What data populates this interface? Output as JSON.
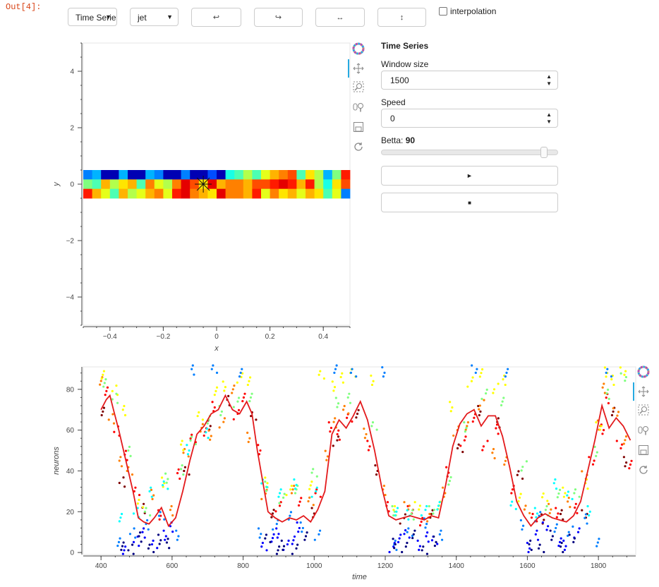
{
  "cell": {
    "prompt": "Out[4]:"
  },
  "controls": {
    "dataset_select": {
      "value": "Time Series"
    },
    "colormap_select": {
      "value": "jet"
    },
    "buttons": [
      {
        "glyph": "↩",
        "icon": "rotate-left-icon"
      },
      {
        "glyph": "↪",
        "icon": "rotate-right-icon"
      },
      {
        "glyph": "↔",
        "icon": "flip-horizontal-icon"
      },
      {
        "glyph": "↕",
        "icon": "flip-vertical-icon"
      }
    ],
    "interpolation": {
      "label": "interpolation",
      "checked": false
    }
  },
  "side_panel": {
    "title": "Time Series",
    "window_size": {
      "label": "Window size",
      "value": "1500"
    },
    "speed": {
      "label": "Speed",
      "value": "0"
    },
    "betta": {
      "label": "Betta: ",
      "value": "90",
      "fraction": 0.92
    },
    "play_glyph": "►",
    "stop_glyph": "■"
  },
  "toolbar_icons": [
    "bokeh-logo-icon",
    "pan-icon",
    "box-zoom-icon",
    "wheel-zoom-icon",
    "save-icon",
    "reset-icon"
  ],
  "colors": {
    "line": "#e31a1c",
    "jet": [
      "#00007f",
      "#0000ff",
      "#007fff",
      "#00ffff",
      "#7fff7f",
      "#ffff00",
      "#ff7f00",
      "#ff0000",
      "#7f0000"
    ]
  },
  "chart_data": [
    {
      "type": "heatmap",
      "xlabel": "x",
      "ylabel": "y",
      "xlim": [
        -0.5,
        0.5
      ],
      "ylim": [
        -5,
        5
      ],
      "xticks": [
        "−0.4",
        "−0.2",
        "0",
        "0.2",
        "0.4"
      ],
      "xtick_values": [
        -0.4,
        -0.2,
        0,
        0.2,
        0.4
      ],
      "yticks": [
        "4",
        "2",
        "0",
        "−2",
        "−4"
      ],
      "ytick_values": [
        4,
        2,
        0,
        -2,
        -4
      ],
      "rows": [
        [
          0.25,
          0.3,
          0.05,
          0.05,
          0.3,
          0.05,
          0.05,
          0.3,
          0.25,
          0.05,
          0.05,
          0.25,
          0.05,
          0.05,
          0.2,
          0.05,
          0.4,
          0.45,
          0.55,
          0.45,
          0.6,
          0.7,
          0.75,
          0.8,
          0.45,
          0.65,
          0.55,
          0.3,
          0.5,
          0.85
        ],
        [
          0.5,
          0.45,
          0.7,
          0.55,
          0.65,
          0.7,
          0.45,
          0.75,
          0.6,
          0.55,
          0.75,
          0.9,
          0.8,
          0.65,
          0.9,
          0.7,
          0.75,
          0.75,
          0.7,
          0.8,
          0.8,
          0.85,
          0.9,
          0.85,
          0.7,
          0.85,
          0.55,
          0.4,
          0.65,
          0.8
        ],
        [
          0.85,
          0.7,
          0.6,
          0.45,
          0.7,
          0.55,
          0.6,
          0.7,
          0.75,
          0.6,
          0.85,
          0.9,
          0.75,
          0.7,
          0.65,
          0.9,
          0.75,
          0.75,
          0.7,
          0.85,
          0.6,
          0.75,
          0.65,
          0.7,
          0.6,
          0.7,
          0.65,
          0.45,
          0.6,
          0.25
        ]
      ],
      "marker": {
        "x": -0.05,
        "y": 0
      }
    },
    {
      "type": "scatter",
      "xlabel": "time",
      "ylabel": "neurons",
      "xlim": [
        350,
        1905
      ],
      "ylim": [
        -1,
        91
      ],
      "xticks": [
        "400",
        "600",
        "800",
        "1000",
        "1200",
        "1400",
        "1600",
        "1800"
      ],
      "xtick_values": [
        400,
        600,
        800,
        1000,
        1200,
        1400,
        1600,
        1800
      ],
      "yticks": [
        "0",
        "20",
        "40",
        "60",
        "80"
      ],
      "ytick_values": [
        0,
        20,
        40,
        60,
        80
      ],
      "line": {
        "x": [
          400,
          415,
          425,
          435,
          450,
          470,
          490,
          505,
          520,
          535,
          550,
          570,
          590,
          610,
          630,
          650,
          670,
          690,
          710,
          730,
          750,
          770,
          790,
          810,
          825,
          840,
          855,
          870,
          890,
          910,
          930,
          950,
          970,
          990,
          1010,
          1030,
          1050,
          1070,
          1090,
          1110,
          1130,
          1150,
          1170,
          1190,
          1210,
          1230,
          1250,
          1270,
          1290,
          1310,
          1330,
          1350,
          1370,
          1390,
          1410,
          1430,
          1450,
          1470,
          1490,
          1510,
          1530,
          1550,
          1570,
          1590,
          1610,
          1630,
          1650,
          1670,
          1690,
          1710,
          1730,
          1750,
          1770,
          1790,
          1810,
          1830,
          1850,
          1870,
          1890
        ],
        "y": [
          70,
          75,
          77,
          70,
          60,
          45,
          30,
          17,
          15,
          14,
          17,
          22,
          13,
          17,
          30,
          45,
          58,
          62,
          68,
          70,
          77,
          70,
          68,
          74,
          68,
          50,
          35,
          20,
          17,
          15,
          17,
          16,
          18,
          15,
          21,
          30,
          58,
          65,
          61,
          67,
          74,
          65,
          50,
          32,
          18,
          16,
          17,
          18,
          17,
          16,
          18,
          17,
          33,
          52,
          63,
          68,
          70,
          62,
          67,
          67,
          57,
          42,
          25,
          18,
          13,
          17,
          19,
          17,
          16,
          15,
          18,
          25,
          40,
          55,
          72,
          61,
          66,
          62,
          55
        ]
      },
      "series": [
        {
          "name": "",
          "color_index": 8,
          "x": [
            410,
            460,
            520,
            640,
            700,
            760,
            830,
            880,
            1000,
            1060,
            1120,
            1180,
            1250,
            1330,
            1410,
            1460,
            1520,
            1580,
            1640,
            1700,
            1760,
            1840,
            1880
          ],
          "y": [
            70,
            35,
            22,
            40,
            62,
            74,
            66,
            20,
            20,
            55,
            68,
            40,
            16,
            18,
            52,
            70,
            64,
            38,
            16,
            18,
            18,
            70,
            45
          ]
        },
        {
          "name": "",
          "color_index": 7,
          "x": [
            420,
            445,
            470,
            500,
            560,
            620,
            660,
            690,
            720,
            780,
            800,
            850,
            900,
            960,
            1010,
            1040,
            1070,
            1100,
            1150,
            1210,
            1270,
            1300,
            1380,
            1420,
            1450,
            1480,
            1510,
            1560,
            1620,
            1680,
            1740,
            1780,
            1810,
            1830,
            1860,
            1890
          ],
          "y": [
            80,
            60,
            48,
            30,
            18,
            38,
            55,
            60,
            72,
            68,
            76,
            50,
            22,
            24,
            30,
            62,
            58,
            66,
            52,
            22,
            20,
            16,
            40,
            55,
            66,
            52,
            60,
            30,
            18,
            20,
            22,
            45,
            60,
            75,
            52,
            44
          ]
        },
        {
          "name": "",
          "color_index": 6,
          "x": [
            405,
            430,
            455,
            480,
            540,
            600,
            640,
            680,
            710,
            740,
            770,
            820,
            860,
            940,
            990,
            1030,
            1060,
            1090,
            1140,
            1200,
            1260,
            1320,
            1370,
            1400,
            1430,
            1470,
            1500,
            1540,
            1600,
            1660,
            1720,
            1760,
            1800,
            1820,
            1850,
            1875
          ],
          "y": [
            85,
            66,
            45,
            40,
            28,
            20,
            48,
            62,
            58,
            64,
            80,
            56,
            28,
            30,
            26,
            48,
            64,
            70,
            58,
            30,
            22,
            18,
            30,
            60,
            62,
            72,
            48,
            44,
            22,
            22,
            25,
            38,
            62,
            80,
            68,
            56
          ]
        },
        {
          "name": "",
          "color_index": 5,
          "x": [
            410,
            440,
            465,
            510,
            570,
            630,
            680,
            720,
            750,
            790,
            815,
            870,
            930,
            990,
            1020,
            1050,
            1080,
            1110,
            1160,
            1230,
            1290,
            1350,
            1390,
            1440,
            1470,
            1510,
            1530,
            1580,
            1650,
            1700,
            1770,
            1800,
            1820,
            1845,
            1870
          ],
          "y": [
            88,
            80,
            70,
            24,
            34,
            52,
            66,
            80,
            82,
            86,
            84,
            34,
            30,
            32,
            88,
            82,
            86,
            88,
            84,
            20,
            22,
            24,
            72,
            84,
            88,
            80,
            84,
            26,
            28,
            30,
            34,
            62,
            88,
            84,
            88
          ]
        },
        {
          "name": "",
          "color_index": 4,
          "x": [
            415,
            440,
            480,
            530,
            580,
            630,
            660,
            700,
            740,
            780,
            820,
            870,
            910,
            950,
            1000,
            1060,
            1100,
            1170,
            1220,
            1280,
            1330,
            1380,
            1430,
            1480,
            1530,
            1590,
            1650,
            1690,
            1740,
            1790,
            1830,
            1870
          ],
          "y": [
            84,
            76,
            50,
            20,
            36,
            40,
            54,
            66,
            70,
            74,
            76,
            32,
            26,
            30,
            40,
            74,
            76,
            62,
            20,
            18,
            20,
            36,
            62,
            78,
            74,
            42,
            20,
            28,
            30,
            50,
            78,
            86
          ]
        },
        {
          "name": "",
          "color_index": 3,
          "x": [
            460,
            500,
            540,
            580,
            640,
            700,
            860,
            900,
            950,
            1000,
            1230,
            1270,
            1310,
            1350,
            1560,
            1620,
            1680,
            1720,
            1770
          ],
          "y": [
            18,
            20,
            30,
            33,
            50,
            58,
            33,
            30,
            34,
            30,
            20,
            18,
            20,
            22,
            24,
            20,
            34,
            28,
            20
          ]
        },
        {
          "name": "",
          "color_index": 2,
          "x": [
            455,
            490,
            530,
            570,
            610,
            660,
            720,
            790,
            850,
            890,
            930,
            970,
            1010,
            1060,
            1110,
            1190,
            1230,
            1270,
            1310,
            1360,
            1450,
            1540,
            1590,
            1630,
            1680,
            1720,
            1760,
            1800,
            1830
          ],
          "y": [
            6,
            10,
            14,
            18,
            8,
            89,
            89,
            89,
            10,
            14,
            18,
            12,
            8,
            89,
            89,
            89,
            4,
            10,
            14,
            8,
            89,
            89,
            14,
            18,
            12,
            10,
            16,
            4,
            89
          ]
        },
        {
          "name": "",
          "color_index": 1,
          "x": [
            470,
            500,
            520,
            550,
            575,
            600,
            860,
            880,
            900,
            920,
            940,
            960,
            1220,
            1240,
            1260,
            1290,
            1320,
            1340,
            1600,
            1630,
            1650,
            1690,
            1710,
            1740
          ],
          "y": [
            2,
            6,
            10,
            4,
            8,
            12,
            2,
            8,
            10,
            4,
            6,
            12,
            2,
            6,
            10,
            4,
            8,
            6,
            2,
            8,
            12,
            6,
            4,
            10
          ]
        },
        {
          "name": "",
          "color_index": 0,
          "x": [
            465,
            485,
            510,
            540,
            560,
            590,
            870,
            895,
            915,
            945,
            975,
            1230,
            1255,
            1280,
            1310,
            1335,
            1610,
            1640,
            1665,
            1700,
            1725
          ],
          "y": [
            4,
            2,
            8,
            2,
            6,
            4,
            6,
            2,
            4,
            2,
            8,
            4,
            2,
            8,
            2,
            6,
            4,
            2,
            8,
            2,
            6
          ]
        }
      ]
    }
  ]
}
